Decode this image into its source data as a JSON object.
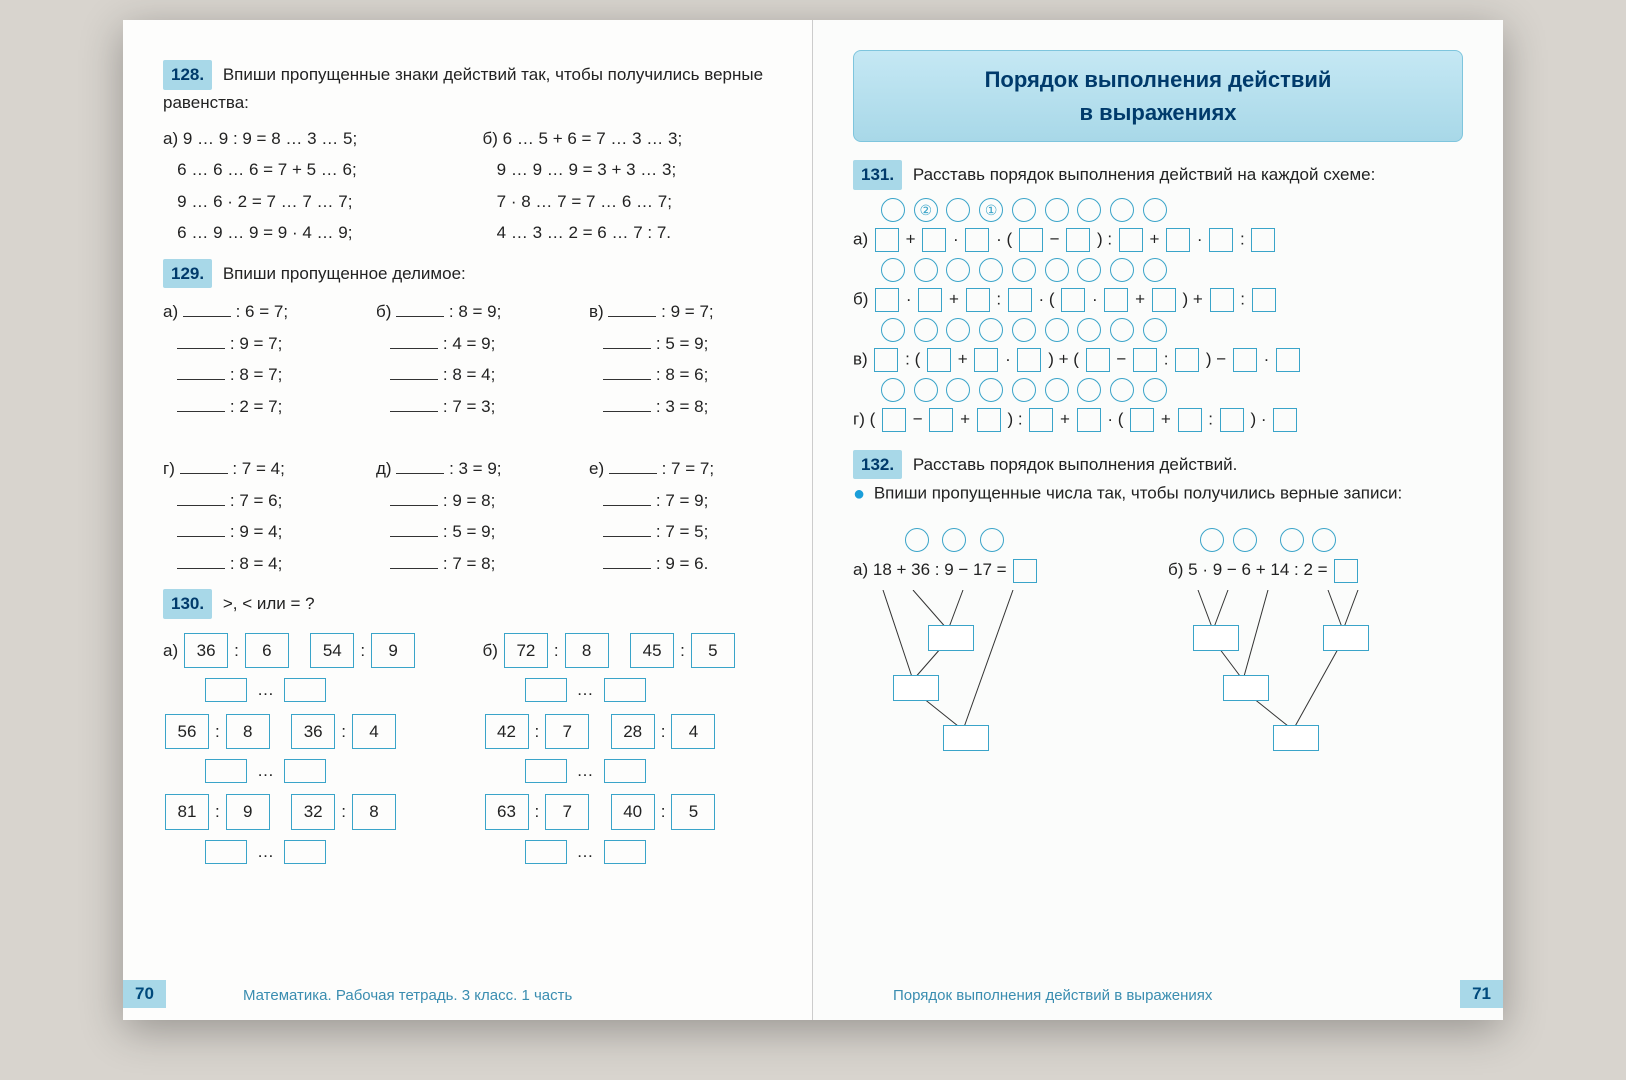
{
  "left": {
    "t128": {
      "num": "128.",
      "text": "Впиши пропущенные знаки действий так, чтобы получились верные равенства:",
      "a_label": "а)",
      "b_label": "б)",
      "a": [
        "9 … 9 : 9 = 8 … 3 … 5;",
        "6 … 6 … 6 = 7 + 5 … 6;",
        "9 … 6 · 2 = 7 … 7 … 7;",
        "6 … 9 … 9 = 9 · 4 … 9;"
      ],
      "b": [
        "6 … 5 + 6 = 7 … 3 … 3;",
        "9 … 9 … 9 = 3 + 3 … 3;",
        "7 · 8 … 7 = 7 … 6 … 7;",
        "4 … 3 … 2 = 6 … 7 : 7."
      ]
    },
    "t129": {
      "num": "129.",
      "text": "Впиши пропущенное делимое:",
      "labels": [
        "а)",
        "б)",
        "в)",
        "г)",
        "д)",
        "е)"
      ],
      "grid": [
        [
          ": 6 = 7;",
          ": 8 = 9;",
          ": 9 = 7;"
        ],
        [
          ": 9 = 7;",
          ": 4 = 9;",
          ": 5 = 9;"
        ],
        [
          ": 8 = 7;",
          ": 8 = 4;",
          ": 8 = 6;"
        ],
        [
          ": 2 = 7;",
          ": 7 = 3;",
          ": 3 = 8;"
        ],
        [
          ": 7 = 4;",
          ": 3 = 9;",
          ": 7 = 7;"
        ],
        [
          ": 7 = 6;",
          ": 9 = 8;",
          ": 7 = 9;"
        ],
        [
          ": 9 = 4;",
          ": 5 = 9;",
          ": 7 = 5;"
        ],
        [
          ": 8 = 4;",
          ": 7 = 8;",
          ": 9 = 6."
        ]
      ]
    },
    "t130": {
      "num": "130.",
      "text": ">,  <  или  =  ?",
      "a_label": "а)",
      "b_label": "б)",
      "a": [
        [
          "36",
          ":",
          "6",
          "54",
          ":",
          "9"
        ],
        [
          "56",
          ":",
          "8",
          "36",
          ":",
          "4"
        ],
        [
          "81",
          ":",
          "9",
          "32",
          ":",
          "8"
        ]
      ],
      "b": [
        [
          "72",
          ":",
          "8",
          "45",
          ":",
          "5"
        ],
        [
          "42",
          ":",
          "7",
          "28",
          ":",
          "4"
        ],
        [
          "63",
          ":",
          "7",
          "40",
          ":",
          "5"
        ]
      ]
    },
    "page_num": "70",
    "footer": "Математика. Рабочая тетрадь. 3 класс. 1 часть"
  },
  "right": {
    "header_l1": "Порядок выполнения действий",
    "header_l2": "в выражениях",
    "t131": {
      "num": "131.",
      "text": "Расставь порядок выполнения действий на каждой схеме:",
      "circ2": "②",
      "circ1": "①",
      "rows": {
        "a": {
          "label": "а)",
          "expr": "□ + □ · □ · ( □ − □ ) : □ + □ · □ : □",
          "circles": 9
        },
        "b": {
          "label": "б)",
          "expr": "□ · □ + □ : □ · ( □ · □ + □ ) + □ : □",
          "circles": 9
        },
        "v": {
          "label": "в)",
          "expr": "□ : ( □ + □ · □ ) + ( □ − □ : □ ) − □ · □",
          "circles": 9
        },
        "g": {
          "label": "г)",
          "expr": "( □ − □ + □ ) : □ + □ · ( □ + □ : □ ) · □",
          "circles": 9
        }
      }
    },
    "t132": {
      "num": "132.",
      "text1": "Расставь порядок выполнения действий.",
      "text2": "Впиши пропущенные числа так, чтобы получились верные записи:",
      "a_label": "а)",
      "a_expr": "18 + 36 : 9 − 17 =",
      "b_label": "б)",
      "b_expr": "5 · 9 − 6 + 14 : 2 ="
    },
    "page_num": "71",
    "footer": "Порядок выполнения действий в выражениях"
  },
  "colors": {
    "accent": "#a8d8e8",
    "border": "#3aa4c9",
    "text_dark": "#003a6b"
  }
}
